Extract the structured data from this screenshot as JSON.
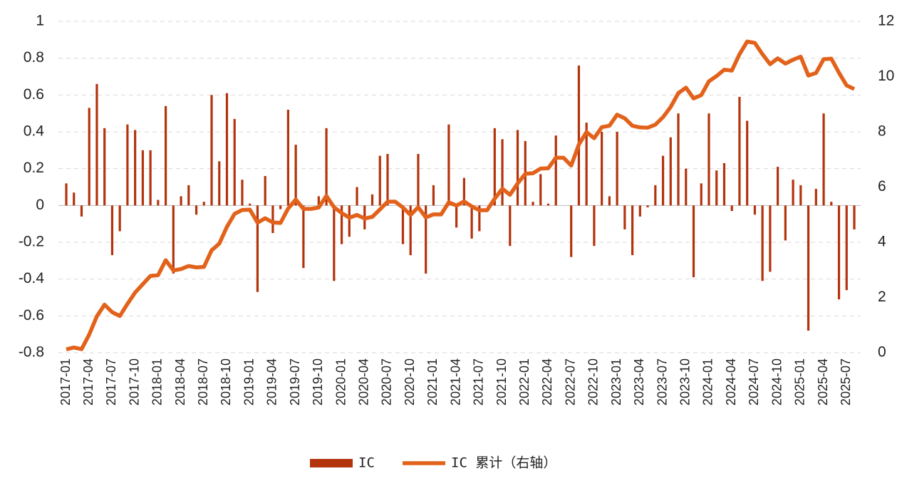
{
  "chart_data": {
    "type": "bar_line",
    "categories": [
      "2017-01",
      null,
      null,
      "2017-04",
      null,
      null,
      "2017-07",
      null,
      null,
      "2017-10",
      null,
      null,
      "2018-01",
      null,
      null,
      "2018-04",
      null,
      null,
      "2018-07",
      null,
      null,
      "2018-10",
      null,
      null,
      "2019-01",
      null,
      null,
      "2019-04",
      null,
      null,
      "2019-07",
      null,
      null,
      "2019-10",
      null,
      null,
      "2020-01",
      null,
      null,
      "2020-04",
      null,
      null,
      "2020-07",
      null,
      null,
      "2020-10",
      null,
      null,
      "2021-01",
      null,
      null,
      "2021-04",
      null,
      null,
      "2021-07",
      null,
      null,
      "2021-10",
      null,
      null,
      "2022-01",
      null,
      null,
      "2022-04",
      null,
      null,
      "2022-07",
      null,
      null,
      "2022-10",
      null,
      null,
      "2023-01",
      null,
      null,
      "2023-04",
      null,
      null,
      "2023-07",
      null,
      null,
      "2023-10",
      null,
      null,
      "2024-01",
      null,
      null,
      "2024-04",
      null,
      null,
      "2024-07",
      null,
      null,
      "2024-10",
      null,
      null,
      "2025-01",
      null,
      null,
      "2025-04",
      null,
      null,
      "2025-07",
      null
    ],
    "series": [
      {
        "name": "IC",
        "color": "#b3330c",
        "values": [
          0.12,
          0.07,
          -0.06,
          0.53,
          0.66,
          0.42,
          -0.27,
          -0.14,
          0.44,
          0.41,
          0.3,
          0.3,
          0.03,
          0.54,
          -0.37,
          0.05,
          0.11,
          -0.05,
          0.02,
          0.6,
          0.24,
          0.61,
          0.47,
          0.14,
          0.01,
          -0.47,
          0.16,
          -0.15,
          -0.02,
          0.52,
          0.33,
          -0.34,
          0.0,
          0.05,
          0.42,
          -0.41,
          -0.21,
          -0.17,
          0.1,
          -0.13,
          0.06,
          0.27,
          0.28,
          0.0,
          -0.21,
          -0.27,
          0.28,
          -0.37,
          0.11,
          0.0,
          0.44,
          -0.12,
          0.15,
          -0.18,
          -0.14,
          0.0,
          0.42,
          0.36,
          -0.22,
          0.41,
          0.35,
          0.02,
          0.17,
          0.01,
          0.38,
          0.0,
          -0.28,
          0.76,
          0.45,
          -0.22,
          0.4,
          0.05,
          0.4,
          -0.13,
          -0.27,
          -0.06,
          -0.01,
          0.11,
          0.27,
          0.37,
          0.5,
          0.2,
          -0.39,
          0.12,
          0.5,
          0.19,
          0.23,
          -0.03,
          0.59,
          0.46,
          -0.05,
          -0.41,
          -0.36,
          0.21,
          -0.19,
          0.14,
          0.11,
          -0.68,
          0.09,
          0.5,
          0.02,
          -0.51,
          -0.46,
          -0.13
        ]
      },
      {
        "name": "IC 累计（右轴）",
        "color": "#e2621b",
        "axis": "y2",
        "values": [
          0.12,
          0.19,
          0.13,
          0.66,
          1.32,
          1.74,
          1.47,
          1.33,
          1.77,
          2.18,
          2.48,
          2.78,
          2.81,
          3.35,
          2.98,
          3.03,
          3.14,
          3.09,
          3.11,
          3.71,
          3.95,
          4.56,
          5.03,
          5.17,
          5.18,
          4.71,
          4.87,
          4.72,
          4.7,
          5.22,
          5.55,
          5.21,
          5.21,
          5.26,
          5.68,
          5.27,
          5.06,
          4.89,
          4.99,
          4.86,
          4.92,
          5.19,
          5.47,
          5.47,
          5.26,
          4.99,
          5.27,
          4.9,
          5.01,
          5.01,
          5.45,
          5.33,
          5.48,
          5.3,
          5.16,
          5.16,
          5.58,
          5.94,
          5.72,
          6.13,
          6.48,
          6.5,
          6.67,
          6.68,
          7.06,
          7.06,
          6.78,
          7.54,
          7.99,
          7.77,
          8.17,
          8.22,
          8.62,
          8.49,
          8.22,
          8.16,
          8.15,
          8.26,
          8.53,
          8.9,
          9.4,
          9.6,
          9.21,
          9.33,
          9.83,
          10.02,
          10.25,
          10.22,
          10.81,
          11.27,
          11.22,
          10.81,
          10.45,
          10.66,
          10.47,
          10.61,
          10.72,
          10.04,
          10.13,
          10.63,
          10.65,
          10.14,
          9.68,
          9.55
        ]
      }
    ],
    "ylim": [
      -0.8,
      1
    ],
    "yticks": [
      -0.8,
      -0.6,
      -0.4,
      -0.2,
      0,
      0.2,
      0.4,
      0.6,
      0.8,
      1
    ],
    "y2lim": [
      0,
      12
    ],
    "y2ticks": [
      0,
      2,
      4,
      6,
      8,
      10,
      12
    ],
    "grid": true,
    "legend": "bottom"
  }
}
